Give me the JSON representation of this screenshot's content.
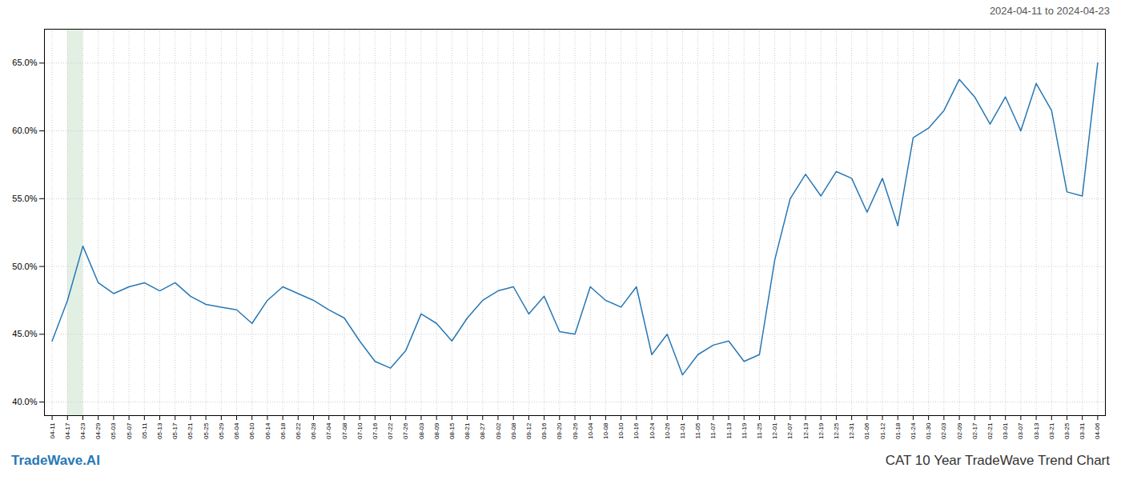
{
  "chart_data": {
    "type": "line",
    "title": "CAT 10 Year TradeWave Trend Chart",
    "subtitle": "2024-04-11 to 2024-04-23",
    "annotations": [
      {
        "text": "TradeWave.AI",
        "color": "#2878b5"
      }
    ],
    "categories": [
      "04-11",
      "04-17",
      "04-23",
      "04-29",
      "05-03",
      "05-07",
      "05-11",
      "05-13",
      "05-17",
      "05-21",
      "05-25",
      "05-29",
      "06-04",
      "06-10",
      "06-14",
      "06-18",
      "06-22",
      "06-28",
      "07-04",
      "07-08",
      "07-10",
      "07-16",
      "07-22",
      "07-26",
      "08-03",
      "08-09",
      "08-15",
      "08-21",
      "08-27",
      "09-02",
      "09-08",
      "09-12",
      "09-16",
      "09-20",
      "09-26",
      "10-04",
      "10-08",
      "10-10",
      "10-16",
      "10-24",
      "10-26",
      "11-01",
      "11-05",
      "11-07",
      "11-13",
      "11-19",
      "11-25",
      "12-01",
      "12-07",
      "12-13",
      "12-19",
      "12-25",
      "12-31",
      "01-06",
      "01-12",
      "01-18",
      "01-24",
      "01-30",
      "02-03",
      "02-09",
      "02-17",
      "02-21",
      "03-01",
      "03-07",
      "03-13",
      "03-21",
      "03-25",
      "03-31",
      "04-06"
    ],
    "values": [
      44.5,
      47.5,
      51.5,
      48.8,
      48.0,
      48.5,
      48.8,
      48.2,
      48.8,
      47.8,
      47.2,
      47.0,
      46.8,
      45.8,
      47.5,
      48.5,
      48.0,
      47.5,
      46.8,
      46.2,
      44.5,
      43.0,
      42.5,
      43.8,
      46.5,
      45.8,
      44.5,
      46.2,
      47.5,
      48.2,
      48.5,
      46.5,
      47.8,
      45.2,
      45.0,
      48.5,
      47.5,
      47.0,
      48.5,
      43.5,
      45.0,
      42.0,
      43.5,
      44.2,
      44.5,
      43.0,
      43.5,
      50.5,
      55.0,
      56.8,
      55.2,
      57.0,
      56.5,
      54.0,
      56.5,
      53.0,
      59.5,
      60.2,
      61.5,
      63.8,
      62.5,
      60.5,
      62.5,
      60.0,
      63.5,
      61.5,
      55.5,
      55.2,
      65.0
    ],
    "color": "#2878b5",
    "shaded_region": {
      "from": "04-17",
      "to": "04-23",
      "color": "#d6ead9"
    },
    "ylim": [
      39.0,
      67.5
    ],
    "yticks": [
      {
        "value": 40.0,
        "label": "40.0%"
      },
      {
        "value": 45.0,
        "label": "45.0%"
      },
      {
        "value": 50.0,
        "label": "50.0%"
      },
      {
        "value": 55.0,
        "label": "55.0%"
      },
      {
        "value": 60.0,
        "label": "60.0%"
      },
      {
        "value": 65.0,
        "label": "65.0%"
      }
    ],
    "grid": true
  }
}
